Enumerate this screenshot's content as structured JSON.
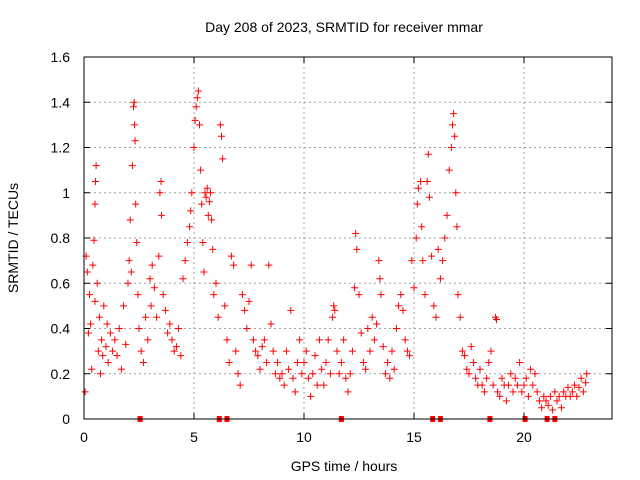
{
  "chart_data": {
    "type": "scatter",
    "title": "Day 208 of 2023, SRMTID for receiver mmar",
    "xlabel": "GPS time / hours",
    "ylabel": "SRMTID / TECUs",
    "xlim": [
      0,
      24
    ],
    "ylim": [
      0,
      1.6
    ],
    "xticks": [
      0,
      5,
      10,
      15,
      20
    ],
    "xtick_labels": [
      "0",
      "5",
      "10",
      "15",
      "20"
    ],
    "yticks": [
      0,
      0.2,
      0.4,
      0.6,
      0.8,
      1.0,
      1.2,
      1.4,
      1.6
    ],
    "ytick_labels": [
      "0",
      "0.2",
      "0.4",
      "0.6",
      "0.8",
      "1",
      "1.2",
      "1.4",
      "1.6"
    ],
    "grid": true,
    "marker": "plus",
    "color": "#ff0000",
    "gap_markers_x": [
      2.55,
      6.15,
      6.5,
      11.7,
      15.85,
      16.2,
      18.45,
      20.05,
      21.05,
      21.4
    ],
    "series": [
      {
        "name": "SRMTID",
        "points": [
          [
            0.05,
            0.12
          ],
          [
            0.1,
            0.72
          ],
          [
            0.15,
            0.65
          ],
          [
            0.2,
            0.38
          ],
          [
            0.25,
            0.55
          ],
          [
            0.3,
            0.42
          ],
          [
            0.35,
            0.22
          ],
          [
            0.4,
            0.68
          ],
          [
            0.45,
            0.79
          ],
          [
            0.5,
            0.52
          ],
          [
            0.5,
            0.95
          ],
          [
            0.52,
            1.05
          ],
          [
            0.55,
            1.12
          ],
          [
            0.6,
            0.6
          ],
          [
            0.65,
            0.3
          ],
          [
            0.7,
            0.45
          ],
          [
            0.75,
            0.2
          ],
          [
            0.8,
            0.35
          ],
          [
            0.85,
            0.28
          ],
          [
            0.9,
            0.5
          ],
          [
            1.0,
            0.32
          ],
          [
            1.05,
            0.42
          ],
          [
            1.1,
            0.25
          ],
          [
            1.2,
            0.38
          ],
          [
            1.3,
            0.3
          ],
          [
            1.4,
            0.35
          ],
          [
            1.5,
            0.28
          ],
          [
            1.6,
            0.4
          ],
          [
            1.7,
            0.22
          ],
          [
            1.8,
            0.5
          ],
          [
            1.9,
            0.33
          ],
          [
            2.0,
            0.6
          ],
          [
            2.05,
            0.7
          ],
          [
            2.1,
            0.88
          ],
          [
            2.15,
            0.65
          ],
          [
            2.2,
            1.12
          ],
          [
            2.25,
            1.38
          ],
          [
            2.28,
            1.4
          ],
          [
            2.3,
            1.3
          ],
          [
            2.32,
            1.23
          ],
          [
            2.35,
            0.95
          ],
          [
            2.4,
            0.78
          ],
          [
            2.45,
            0.55
          ],
          [
            2.5,
            0.4
          ],
          [
            2.6,
            0.3
          ],
          [
            2.7,
            0.25
          ],
          [
            2.8,
            0.45
          ],
          [
            2.9,
            0.35
          ],
          [
            3.0,
            0.62
          ],
          [
            3.05,
            0.5
          ],
          [
            3.1,
            0.68
          ],
          [
            3.2,
            0.58
          ],
          [
            3.3,
            0.45
          ],
          [
            3.4,
            0.72
          ],
          [
            3.45,
            1.0
          ],
          [
            3.5,
            1.05
          ],
          [
            3.52,
            0.9
          ],
          [
            3.6,
            0.55
          ],
          [
            3.7,
            0.48
          ],
          [
            3.8,
            0.38
          ],
          [
            3.9,
            0.42
          ],
          [
            4.0,
            0.35
          ],
          [
            4.1,
            0.3
          ],
          [
            4.2,
            0.32
          ],
          [
            4.3,
            0.4
          ],
          [
            4.4,
            0.28
          ],
          [
            4.5,
            0.62
          ],
          [
            4.6,
            0.7
          ],
          [
            4.7,
            0.78
          ],
          [
            4.8,
            0.85
          ],
          [
            4.85,
            0.92
          ],
          [
            4.9,
            1.0
          ],
          [
            5.0,
            1.2
          ],
          [
            5.05,
            1.32
          ],
          [
            5.1,
            1.38
          ],
          [
            5.15,
            1.42
          ],
          [
            5.2,
            1.45
          ],
          [
            5.25,
            1.3
          ],
          [
            5.3,
            1.1
          ],
          [
            5.35,
            0.95
          ],
          [
            5.4,
            0.78
          ],
          [
            5.45,
            0.65
          ],
          [
            5.5,
            1.0
          ],
          [
            5.55,
            0.98
          ],
          [
            5.6,
            1.02
          ],
          [
            5.65,
            0.9
          ],
          [
            5.7,
            0.96
          ],
          [
            5.75,
            1.0
          ],
          [
            5.8,
            0.88
          ],
          [
            5.85,
            0.75
          ],
          [
            5.9,
            0.55
          ],
          [
            6.0,
            0.6
          ],
          [
            6.1,
            0.45
          ],
          [
            6.2,
            1.3
          ],
          [
            6.25,
            1.25
          ],
          [
            6.3,
            1.15
          ],
          [
            6.4,
            0.5
          ],
          [
            6.5,
            0.35
          ],
          [
            6.6,
            0.25
          ],
          [
            6.7,
            0.72
          ],
          [
            6.8,
            0.68
          ],
          [
            6.9,
            0.3
          ],
          [
            7.0,
            0.2
          ],
          [
            7.1,
            0.15
          ],
          [
            7.2,
            0.55
          ],
          [
            7.3,
            0.48
          ],
          [
            7.4,
            0.4
          ],
          [
            7.5,
            0.52
          ],
          [
            7.6,
            0.68
          ],
          [
            7.7,
            0.35
          ],
          [
            7.8,
            0.3
          ],
          [
            7.9,
            0.28
          ],
          [
            8.0,
            0.22
          ],
          [
            8.1,
            0.32
          ],
          [
            8.2,
            0.35
          ],
          [
            8.3,
            0.25
          ],
          [
            8.4,
            0.68
          ],
          [
            8.5,
            0.42
          ],
          [
            8.6,
            0.3
          ],
          [
            8.7,
            0.2
          ],
          [
            8.8,
            0.25
          ],
          [
            8.9,
            0.18
          ],
          [
            9.0,
            0.2
          ],
          [
            9.1,
            0.15
          ],
          [
            9.2,
            0.3
          ],
          [
            9.3,
            0.22
          ],
          [
            9.4,
            0.48
          ],
          [
            9.5,
            0.18
          ],
          [
            9.6,
            0.12
          ],
          [
            9.7,
            0.25
          ],
          [
            9.8,
            0.35
          ],
          [
            9.9,
            0.2
          ],
          [
            10.0,
            0.25
          ],
          [
            10.1,
            0.3
          ],
          [
            10.2,
            0.18
          ],
          [
            10.3,
            0.1
          ],
          [
            10.4,
            0.2
          ],
          [
            10.5,
            0.28
          ],
          [
            10.6,
            0.15
          ],
          [
            10.7,
            0.35
          ],
          [
            10.8,
            0.22
          ],
          [
            10.9,
            0.15
          ],
          [
            11.0,
            0.25
          ],
          [
            11.1,
            0.35
          ],
          [
            11.2,
            0.2
          ],
          [
            11.3,
            0.45
          ],
          [
            11.35,
            0.5
          ],
          [
            11.4,
            0.48
          ],
          [
            11.5,
            0.3
          ],
          [
            11.6,
            0.2
          ],
          [
            11.7,
            0.25
          ],
          [
            11.8,
            0.35
          ],
          [
            11.9,
            0.18
          ],
          [
            12.0,
            0.12
          ],
          [
            12.1,
            0.2
          ],
          [
            12.2,
            0.3
          ],
          [
            12.3,
            0.58
          ],
          [
            12.35,
            0.82
          ],
          [
            12.4,
            0.75
          ],
          [
            12.5,
            0.55
          ],
          [
            12.6,
            0.38
          ],
          [
            12.7,
            0.25
          ],
          [
            12.8,
            0.22
          ],
          [
            12.9,
            0.4
          ],
          [
            13.0,
            0.3
          ],
          [
            13.1,
            0.45
          ],
          [
            13.2,
            0.35
          ],
          [
            13.3,
            0.42
          ],
          [
            13.4,
            0.7
          ],
          [
            13.45,
            0.62
          ],
          [
            13.5,
            0.55
          ],
          [
            13.6,
            0.32
          ],
          [
            13.7,
            0.2
          ],
          [
            13.8,
            0.25
          ],
          [
            13.9,
            0.18
          ],
          [
            14.0,
            0.3
          ],
          [
            14.1,
            0.22
          ],
          [
            14.2,
            0.4
          ],
          [
            14.3,
            0.5
          ],
          [
            14.4,
            0.55
          ],
          [
            14.5,
            0.48
          ],
          [
            14.6,
            0.35
          ],
          [
            14.7,
            0.3
          ],
          [
            14.8,
            0.28
          ],
          [
            14.9,
            0.7
          ],
          [
            15.0,
            0.58
          ],
          [
            15.1,
            0.8
          ],
          [
            15.15,
            0.95
          ],
          [
            15.2,
            1.02
          ],
          [
            15.3,
            1.05
          ],
          [
            15.35,
            0.85
          ],
          [
            15.4,
            0.7
          ],
          [
            15.5,
            0.55
          ],
          [
            15.6,
            1.05
          ],
          [
            15.65,
            1.17
          ],
          [
            15.7,
            0.98
          ],
          [
            15.8,
            0.72
          ],
          [
            15.9,
            0.5
          ],
          [
            16.0,
            0.45
          ],
          [
            16.1,
            0.75
          ],
          [
            16.2,
            0.62
          ],
          [
            16.3,
            0.7
          ],
          [
            16.4,
            0.8
          ],
          [
            16.5,
            0.9
          ],
          [
            16.6,
            1.1
          ],
          [
            16.7,
            1.2
          ],
          [
            16.75,
            1.3
          ],
          [
            16.8,
            1.35
          ],
          [
            16.85,
            1.25
          ],
          [
            16.9,
            1.0
          ],
          [
            16.95,
            0.85
          ],
          [
            17.0,
            0.55
          ],
          [
            17.1,
            0.45
          ],
          [
            17.2,
            0.3
          ],
          [
            17.3,
            0.28
          ],
          [
            17.4,
            0.22
          ],
          [
            17.5,
            0.2
          ],
          [
            17.6,
            0.32
          ],
          [
            17.7,
            0.25
          ],
          [
            17.8,
            0.18
          ],
          [
            17.9,
            0.15
          ],
          [
            18.0,
            0.22
          ],
          [
            18.1,
            0.15
          ],
          [
            18.2,
            0.12
          ],
          [
            18.3,
            0.18
          ],
          [
            18.4,
            0.25
          ],
          [
            18.5,
            0.3
          ],
          [
            18.6,
            0.15
          ],
          [
            18.7,
            0.45
          ],
          [
            18.75,
            0.44
          ],
          [
            18.8,
            0.12
          ],
          [
            18.9,
            0.1
          ],
          [
            19.0,
            0.18
          ],
          [
            19.1,
            0.15
          ],
          [
            19.2,
            0.08
          ],
          [
            19.3,
            0.15
          ],
          [
            19.4,
            0.2
          ],
          [
            19.5,
            0.12
          ],
          [
            19.6,
            0.18
          ],
          [
            19.7,
            0.15
          ],
          [
            19.8,
            0.25
          ],
          [
            19.9,
            0.12
          ],
          [
            20.0,
            0.15
          ],
          [
            20.1,
            0.18
          ],
          [
            20.2,
            0.1
          ],
          [
            20.3,
            0.22
          ],
          [
            20.4,
            0.15
          ],
          [
            20.5,
            0.2
          ],
          [
            20.6,
            0.12
          ],
          [
            20.7,
            0.08
          ],
          [
            20.8,
            0.05
          ],
          [
            20.9,
            0.1
          ],
          [
            21.0,
            0.08
          ],
          [
            21.1,
            0.06
          ],
          [
            21.2,
            0.1
          ],
          [
            21.3,
            0.04
          ],
          [
            21.4,
            0.12
          ],
          [
            21.5,
            0.08
          ],
          [
            21.6,
            0.1
          ],
          [
            21.7,
            0.05
          ],
          [
            21.8,
            0.12
          ],
          [
            21.9,
            0.1
          ],
          [
            22.0,
            0.14
          ],
          [
            22.1,
            0.1
          ],
          [
            22.2,
            0.12
          ],
          [
            22.3,
            0.15
          ],
          [
            22.4,
            0.1
          ],
          [
            22.5,
            0.14
          ],
          [
            22.6,
            0.18
          ],
          [
            22.7,
            0.12
          ],
          [
            22.8,
            0.16
          ],
          [
            22.85,
            0.2
          ]
        ]
      }
    ]
  }
}
